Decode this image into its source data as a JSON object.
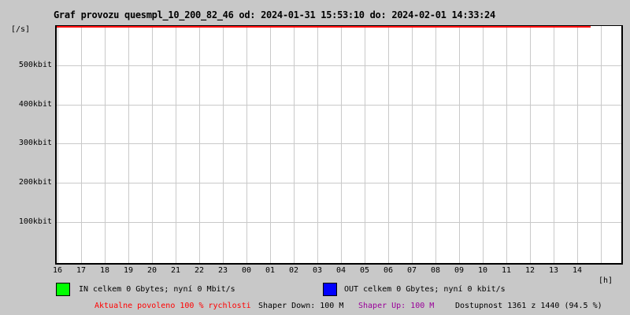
{
  "header": {
    "title": "Graf provozu quesmpl_10_200_82_46 od: 2024-01-31 15:53:10 do: 2024-02-01 14:33:24"
  },
  "y_axis": {
    "unit": "[/s]",
    "tick_labels": [
      "500kbit",
      "400kbit",
      "300kbit",
      "200kbit",
      "100kbit"
    ]
  },
  "x_axis": {
    "unit": "[h]",
    "tick_labels": [
      "16",
      "17",
      "18",
      "19",
      "20",
      "21",
      "22",
      "23",
      "00",
      "01",
      "02",
      "03",
      "04",
      "05",
      "06",
      "07",
      "08",
      "09",
      "10",
      "11",
      "12",
      "13",
      "14"
    ]
  },
  "legend": {
    "in": {
      "swatch": "green-square",
      "color": "#00ff00",
      "label": "IN celkem 0 Gbytes; nyní 0 Mbit/s"
    },
    "out": {
      "swatch": "blue-square",
      "color": "#0000ff",
      "label": "OUT celkem 0 Gbytes; nyní 0 kbit/s"
    }
  },
  "footer": {
    "allowed": {
      "text": "Aktualne povoleno 100 % rychlosti",
      "color": "#ff0000"
    },
    "shaper_down": {
      "text": "Shaper Down: 100 M",
      "color": "#000000"
    },
    "shaper_up": {
      "text": "Shaper Up: 100 M",
      "color": "#990099"
    },
    "availability": {
      "text": "Dostupnost 1361 z 1440 (94.5 %)",
      "color": "#000000"
    }
  },
  "chart_data": {
    "type": "area",
    "title": "Graf provozu quesmpl_10_200_82_46 od: 2024-01-31 15:53:10 do: 2024-02-01 14:33:24",
    "x": [
      "16",
      "17",
      "18",
      "19",
      "20",
      "21",
      "22",
      "23",
      "00",
      "01",
      "02",
      "03",
      "04",
      "05",
      "06",
      "07",
      "08",
      "09",
      "10",
      "11",
      "12",
      "13",
      "14"
    ],
    "xlabel": "[h]",
    "ylabel": "[/s]",
    "y_tick_values_kbit": [
      100,
      200,
      300,
      400,
      500
    ],
    "ylim_kbit": [
      0,
      600
    ],
    "grid": true,
    "legend_position": "bottom",
    "series": [
      {
        "name": "IN",
        "color": "#00ff00",
        "values": [
          0,
          0,
          0,
          0,
          0,
          0,
          0,
          0,
          0,
          0,
          0,
          0,
          0,
          0,
          0,
          0,
          0,
          0,
          0,
          0,
          0,
          0,
          0
        ],
        "total": "0 Gbytes",
        "current": "0 Mbit/s"
      },
      {
        "name": "OUT",
        "color": "#0000ff",
        "values": [
          0,
          0,
          0,
          0,
          0,
          0,
          0,
          0,
          0,
          0,
          0,
          0,
          0,
          0,
          0,
          0,
          0,
          0,
          0,
          0,
          0,
          0,
          0
        ],
        "total": "0 Gbytes",
        "current": "0 kbit/s"
      }
    ],
    "annotations": [
      {
        "type": "limit-line",
        "label": "Aktualne povoleno 100 % rychlosti",
        "color": "#ff0000",
        "position": "top-of-plot",
        "spans_until": "14:33"
      }
    ]
  }
}
